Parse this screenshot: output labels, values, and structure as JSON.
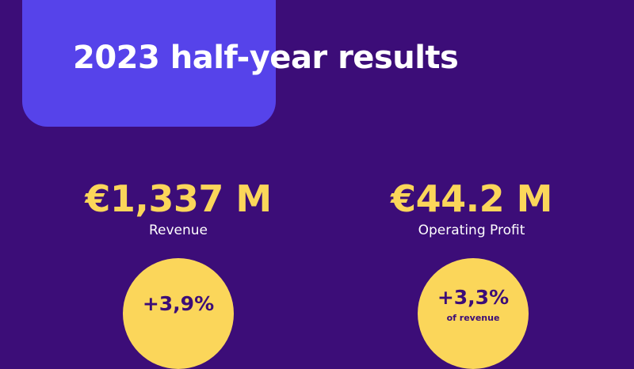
{
  "title": "2023 half-year results",
  "colors": {
    "background": "#3c0d78",
    "accent_block": "#5643ea",
    "highlight": "#fbd65a",
    "text": "#ffffff"
  },
  "metrics": [
    {
      "value": "€1,337 M",
      "label": "Revenue",
      "change": "+3,9%",
      "change_note": ""
    },
    {
      "value": "€44.2 M",
      "label": "Operating Profit",
      "change": "+3,3%",
      "change_note": "of revenue"
    }
  ]
}
